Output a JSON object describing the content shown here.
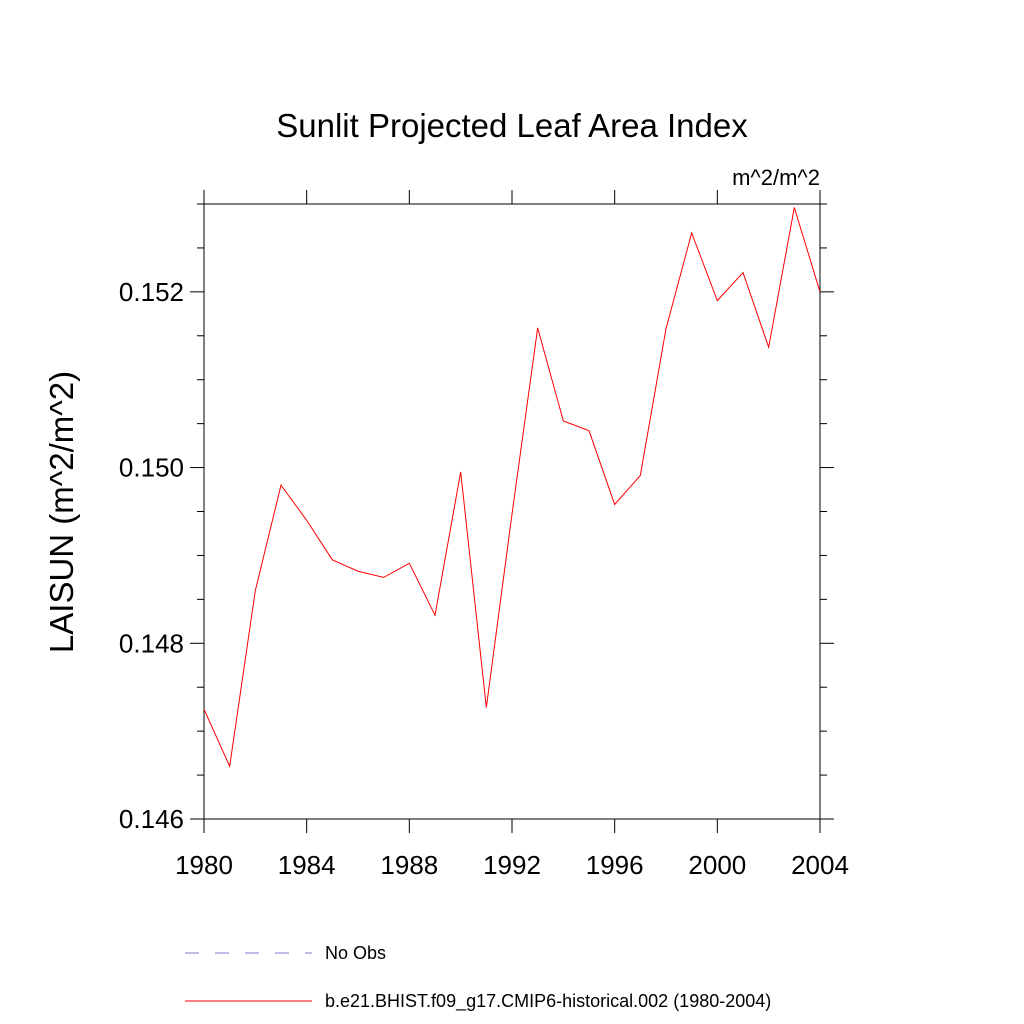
{
  "chart_data": {
    "type": "line",
    "title": "Sunlit Projected Leaf Area Index",
    "units_label": "m^2/m^2",
    "xlabel": "",
    "ylabel": "LAISUN  (m^2/m^2)",
    "xlim": [
      1980,
      2004
    ],
    "ylim": [
      0.146,
      0.153
    ],
    "x_ticks": [
      1980,
      1984,
      1988,
      1992,
      1996,
      2000,
      2004
    ],
    "x_tick_labels": [
      "1980",
      "1984",
      "1988",
      "1992",
      "1996",
      "2000",
      "2004"
    ],
    "y_ticks": [
      0.146,
      0.148,
      0.15,
      0.152
    ],
    "y_tick_labels": [
      "0.146",
      "0.148",
      "0.150",
      "0.152"
    ],
    "series": [
      {
        "name": "b.e21.BHIST.f09_g17.CMIP6-historical.002 (1980-2004)",
        "color": "#ff0000",
        "style": "solid",
        "x": [
          1980,
          1981,
          1982,
          1983,
          1984,
          1985,
          1986,
          1987,
          1988,
          1989,
          1990,
          1991,
          1992,
          1993,
          1994,
          1995,
          1996,
          1997,
          1998,
          1999,
          2000,
          2001,
          2002,
          2003,
          2004
        ],
        "values": [
          0.14725,
          0.1466,
          0.1486,
          0.1498,
          0.1494,
          0.14895,
          0.14882,
          0.14875,
          0.14891,
          0.14832,
          0.14995,
          0.14727,
          0.14947,
          0.15159,
          0.15053,
          0.15042,
          0.14958,
          0.14991,
          0.15158,
          0.15267,
          0.1519,
          0.15222,
          0.15137,
          0.15296,
          0.152
        ]
      }
    ],
    "legend": [
      {
        "label": "No Obs",
        "color": "#7b7bd6",
        "style": "dashed"
      },
      {
        "label": "b.e21.BHIST.f09_g17.CMIP6-historical.002 (1980-2004)",
        "color": "#ff0000",
        "style": "solid"
      }
    ]
  }
}
